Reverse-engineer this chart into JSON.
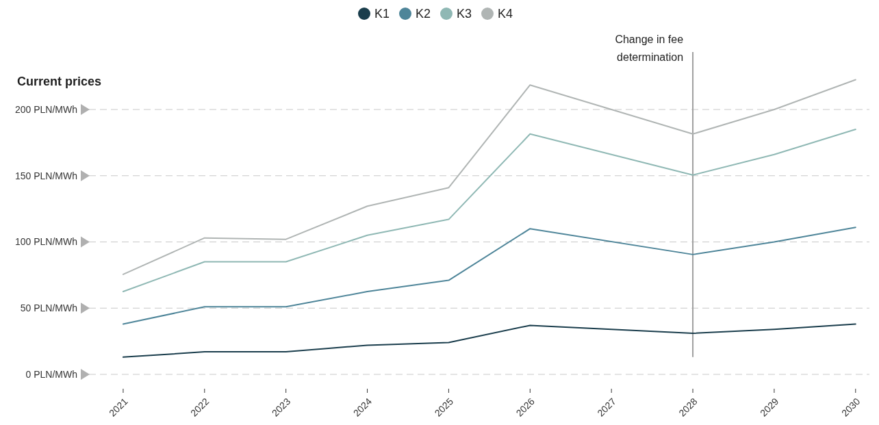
{
  "chart_data": {
    "type": "line",
    "ylabel": "Current prices",
    "legend": "top",
    "xticks": [
      2021,
      2022,
      2023,
      2024,
      2025,
      2026,
      2027,
      2028,
      2029,
      2030
    ],
    "xlim": [
      2020.58,
      2030.17
    ],
    "ylim": [
      0,
      245
    ],
    "yticks": [
      {
        "value": 0,
        "label": "0 PLN/MWh"
      },
      {
        "value": 50,
        "label": "50 PLN/MWh"
      },
      {
        "value": 100,
        "label": "100 PLN/MWh"
      },
      {
        "value": 150,
        "label": "150 PLN/MWh"
      },
      {
        "value": 200,
        "label": "200 PLN/MWh"
      }
    ],
    "grid": "y",
    "marker": "none",
    "line_style": "solid",
    "ref_lines": [
      {
        "axis": "x",
        "value": 2028,
        "label": "Change in fee determination",
        "color": "#a0a0a0"
      }
    ],
    "series": [
      {
        "name": "K1",
        "color": "#1a3d4c",
        "x": [
          2021,
          2022,
          2023,
          2024,
          2025,
          2026,
          2028,
          2029,
          2030
        ],
        "values": [
          13,
          17,
          17,
          22,
          24,
          37,
          31,
          34,
          38
        ]
      },
      {
        "name": "K2",
        "color": "#4e8599",
        "x": [
          2021,
          2022,
          2023,
          2024,
          2025,
          2026,
          2028,
          2029,
          2030
        ],
        "values": [
          38,
          51,
          51,
          62.5,
          71,
          110,
          90.5,
          100,
          111
        ]
      },
      {
        "name": "K3",
        "color": "#8fb8b4",
        "x": [
          2021,
          2022,
          2023,
          2024,
          2025,
          2026,
          2028,
          2029,
          2030
        ],
        "values": [
          62.5,
          85,
          85,
          105,
          117,
          181.5,
          150.5,
          166,
          185
        ]
      },
      {
        "name": "K4",
        "color": "#b0b5b4",
        "x": [
          2021,
          2022,
          2023,
          2024,
          2025,
          2026,
          2028,
          2029,
          2030
        ],
        "values": [
          75.5,
          103,
          102,
          127,
          141,
          218.5,
          181.5,
          200,
          222.5
        ]
      }
    ]
  }
}
